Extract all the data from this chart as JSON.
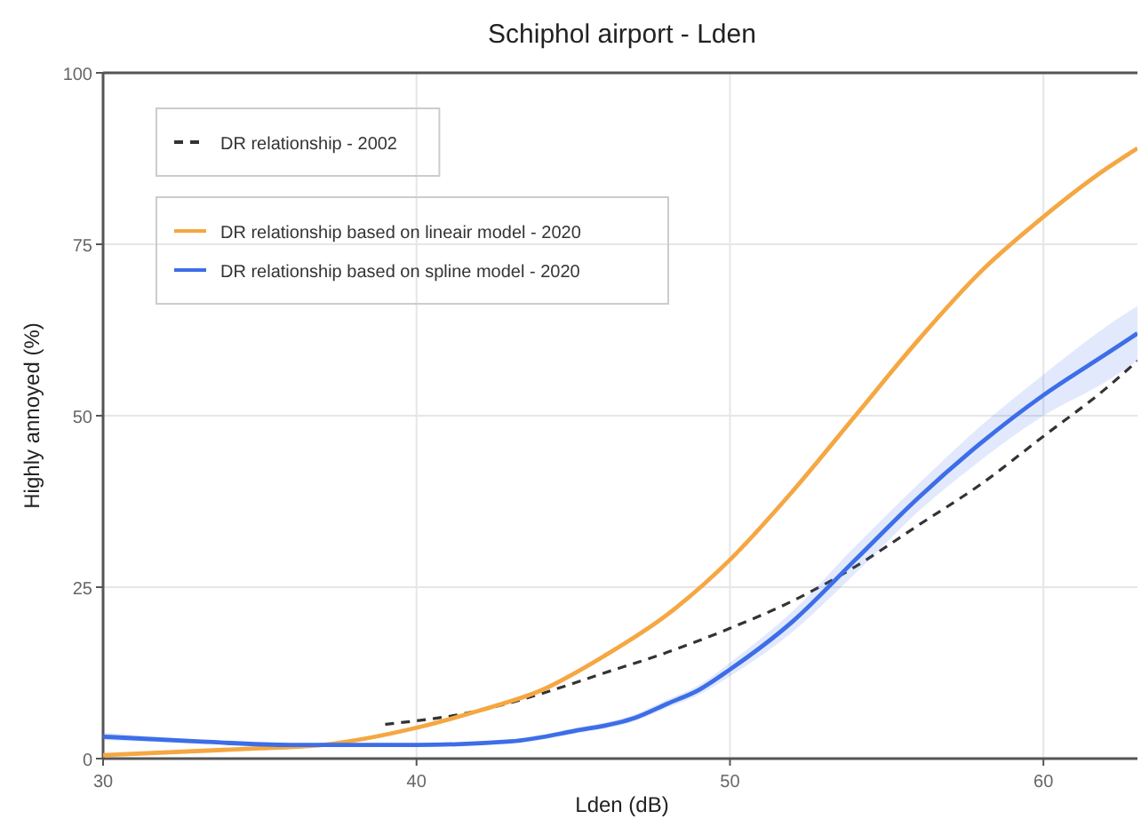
{
  "chart_data": {
    "type": "line",
    "title": "Schiphol airport - Lden",
    "xlabel": "Lden (dB)",
    "ylabel": "Highly annoyed (%)",
    "xlim": [
      30,
      63
    ],
    "ylim": [
      0,
      100
    ],
    "xticks": [
      30,
      40,
      50,
      60
    ],
    "yticks": [
      0,
      25,
      50,
      75,
      100
    ],
    "grid": true,
    "legend": "top left",
    "marker": "none",
    "series": [
      {
        "name": "DR relationship - 2002",
        "color": "#333333",
        "line_style": "dashed",
        "x": [
          39,
          42,
          44,
          46,
          48,
          50,
          52,
          54,
          56,
          58,
          60,
          62,
          63
        ],
        "values": [
          5,
          7,
          9.5,
          12.5,
          15.5,
          19,
          23,
          28,
          34,
          40,
          47,
          54,
          58
        ]
      },
      {
        "name": "DR relationship based on lineair model - 2020",
        "color": "#f5a742",
        "line_style": "solid",
        "x": [
          30,
          35,
          37,
          40,
          42,
          44,
          46,
          48,
          50,
          52,
          54,
          56,
          58,
          60,
          62,
          63
        ],
        "values": [
          0.5,
          1.5,
          2,
          4.5,
          7,
          10,
          15,
          21,
          29,
          39,
          50,
          61,
          71,
          79,
          86,
          89
        ]
      },
      {
        "name": "DR relationship based on spline model - 2020",
        "color": "#3d6ee8",
        "line_style": "solid",
        "x": [
          30,
          33,
          36,
          40,
          43,
          45,
          47,
          48,
          49,
          50,
          52,
          54,
          56,
          58,
          60,
          62,
          63
        ],
        "values": [
          3.2,
          2.5,
          2,
          2,
          2.5,
          4,
          6,
          8,
          10,
          13,
          20,
          29,
          38,
          46,
          53,
          59,
          62
        ],
        "lower": [
          2.7,
          2.2,
          1.8,
          1.8,
          2.2,
          3.6,
          5.5,
          7.4,
          9.3,
          12,
          18.5,
          27,
          36,
          43.5,
          50,
          55,
          58
        ],
        "upper": [
          3.8,
          2.8,
          2.2,
          2.2,
          2.8,
          4.4,
          6.5,
          8.6,
          10.7,
          14,
          21.5,
          31,
          40,
          48.5,
          56,
          63,
          66
        ]
      }
    ]
  }
}
